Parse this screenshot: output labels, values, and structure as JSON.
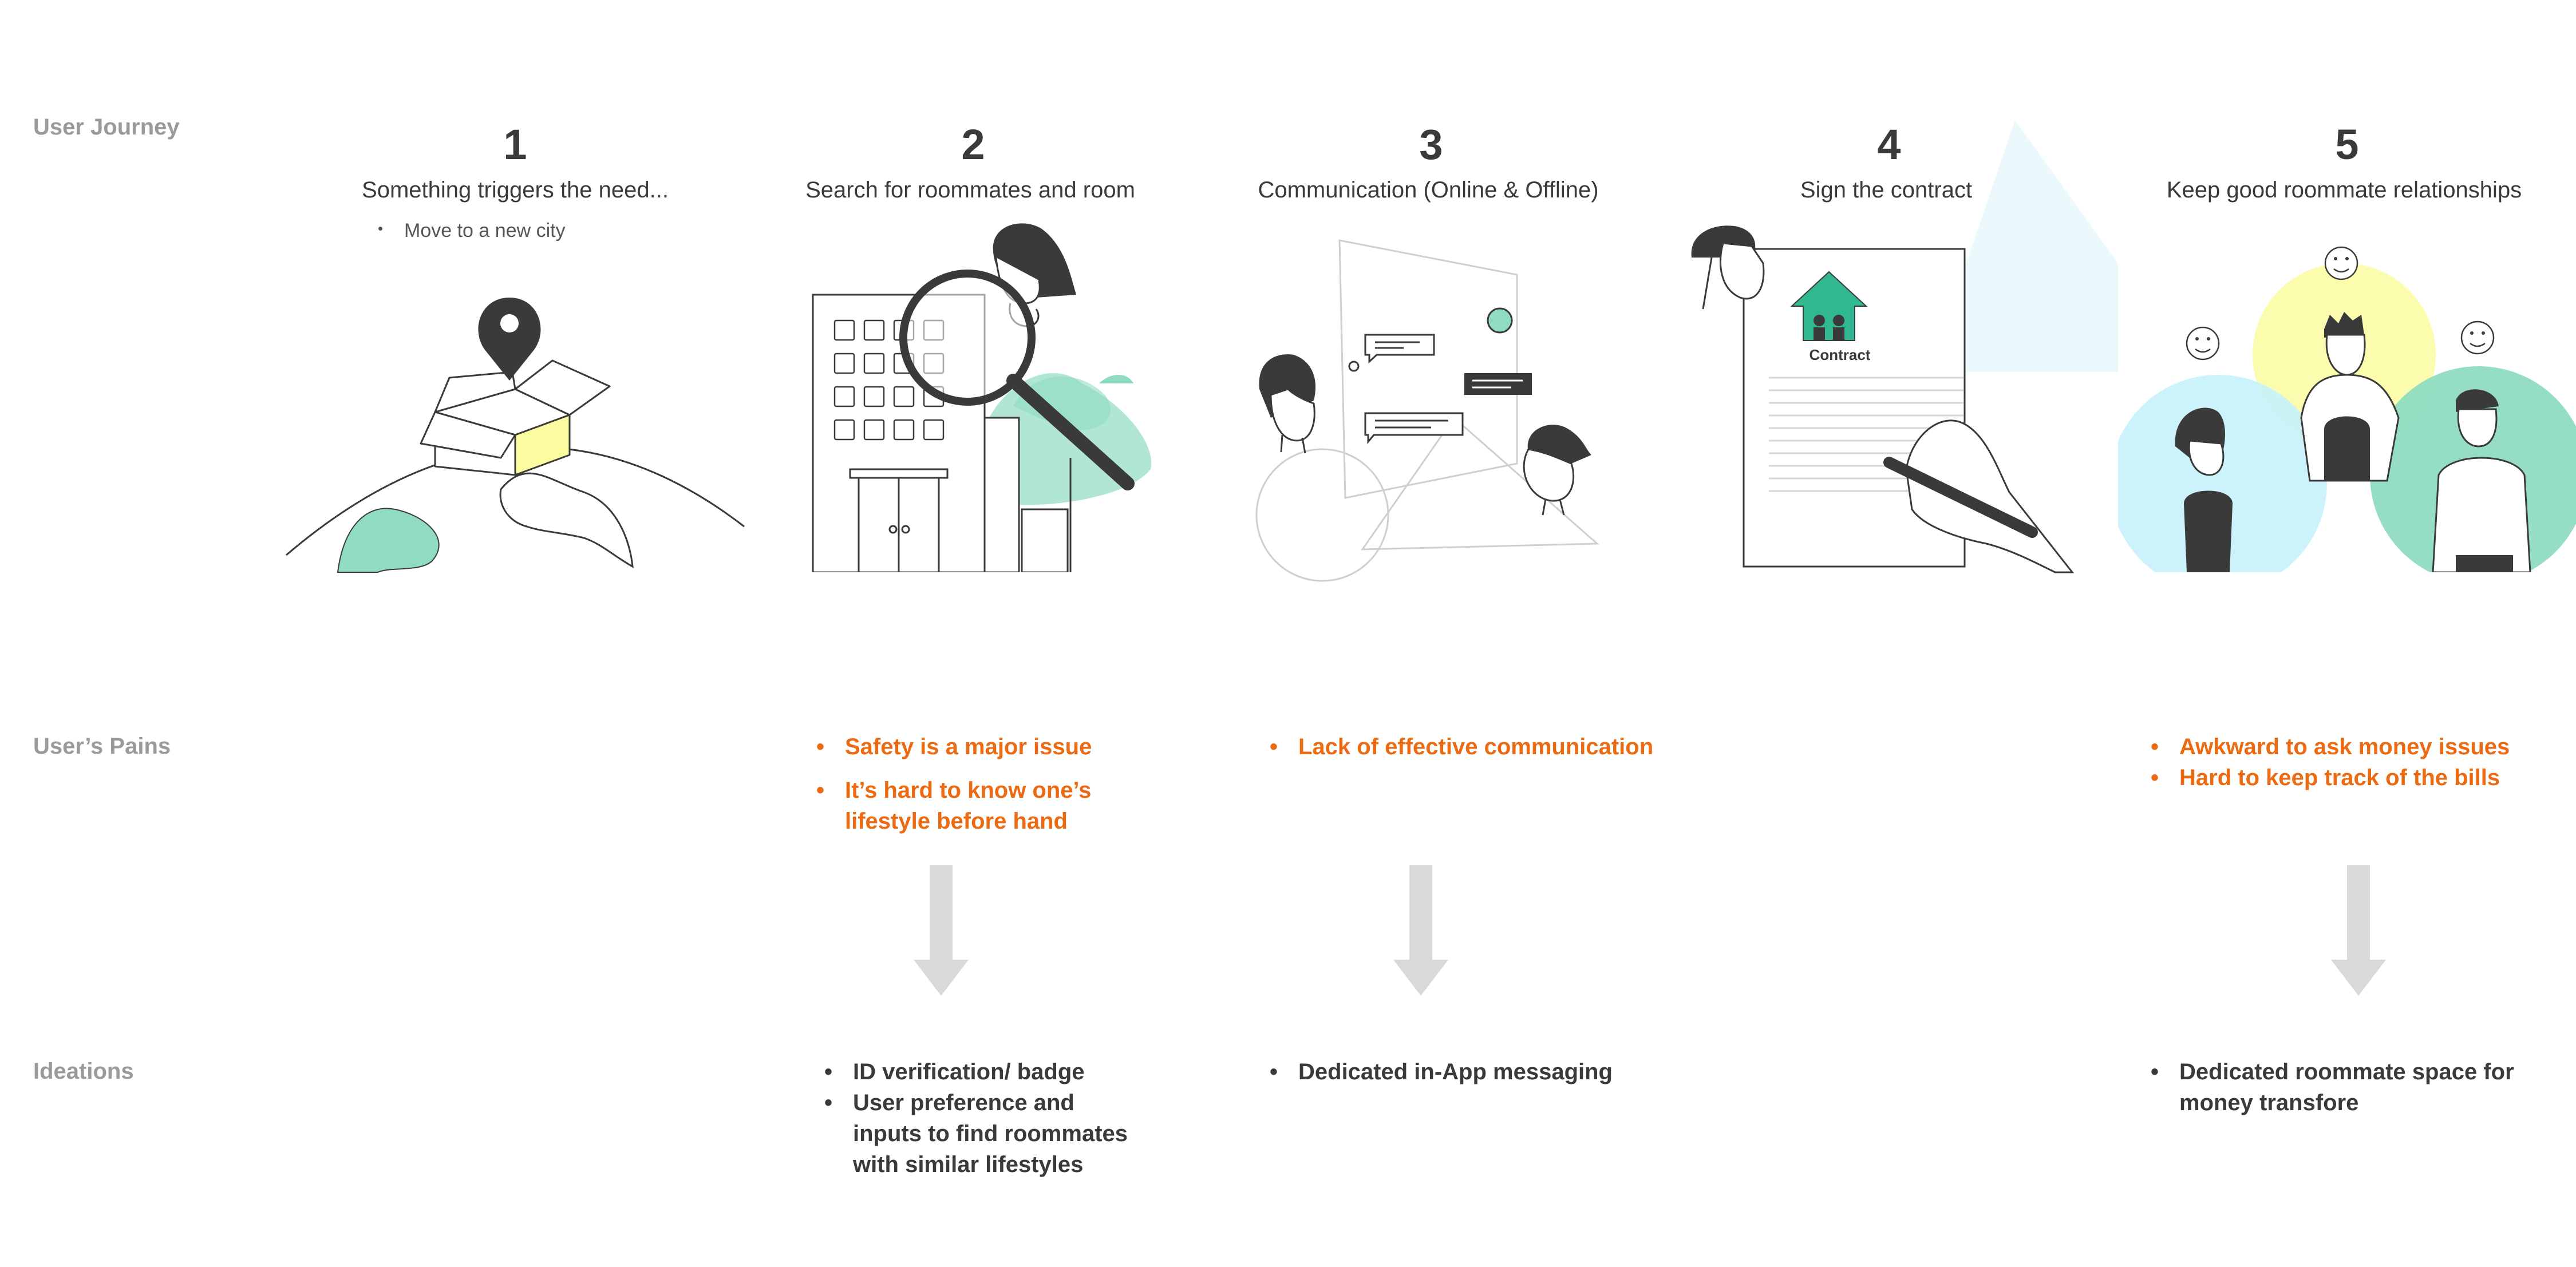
{
  "row_labels": {
    "journey": "User Journey",
    "pains": "User’s Pains",
    "ideations": "Ideations"
  },
  "steps": [
    {
      "number": "1",
      "title": "Something triggers the need...",
      "bullet": "Move to a new city"
    },
    {
      "number": "2",
      "title": "Search for roommates and room"
    },
    {
      "number": "3",
      "title": "Communication (Online & Offline)"
    },
    {
      "number": "4",
      "title": "Sign the contract",
      "contract_label": "Contract"
    },
    {
      "number": "5",
      "title": "Keep good roommate relationships"
    }
  ],
  "pains": {
    "step2": [
      "Safety is a major issue",
      "It’s hard to know one’s",
      "lifestyle before hand"
    ],
    "step3": [
      "Lack of effective communication"
    ],
    "step5": [
      "Awkward to ask money issues",
      "Hard to keep track of the bills"
    ]
  },
  "ideations": {
    "step2": [
      "ID verification/ badge",
      "User preference and",
      "inputs to find roommates",
      "with similar lifestyles"
    ],
    "step3": [
      "Dedicated in-App messaging"
    ],
    "step5": [
      "Dedicated roommate space for",
      "money transfore"
    ]
  },
  "colors": {
    "pain_text": "#ec6a11",
    "idea_text": "#3a3a3a",
    "label_text": "#9a9a9a",
    "accent_green": "#8fdcc0",
    "accent_yellow": "#fbfba0",
    "accent_blue": "#c6f1fb",
    "arrow_gray": "#d9d9d9"
  }
}
